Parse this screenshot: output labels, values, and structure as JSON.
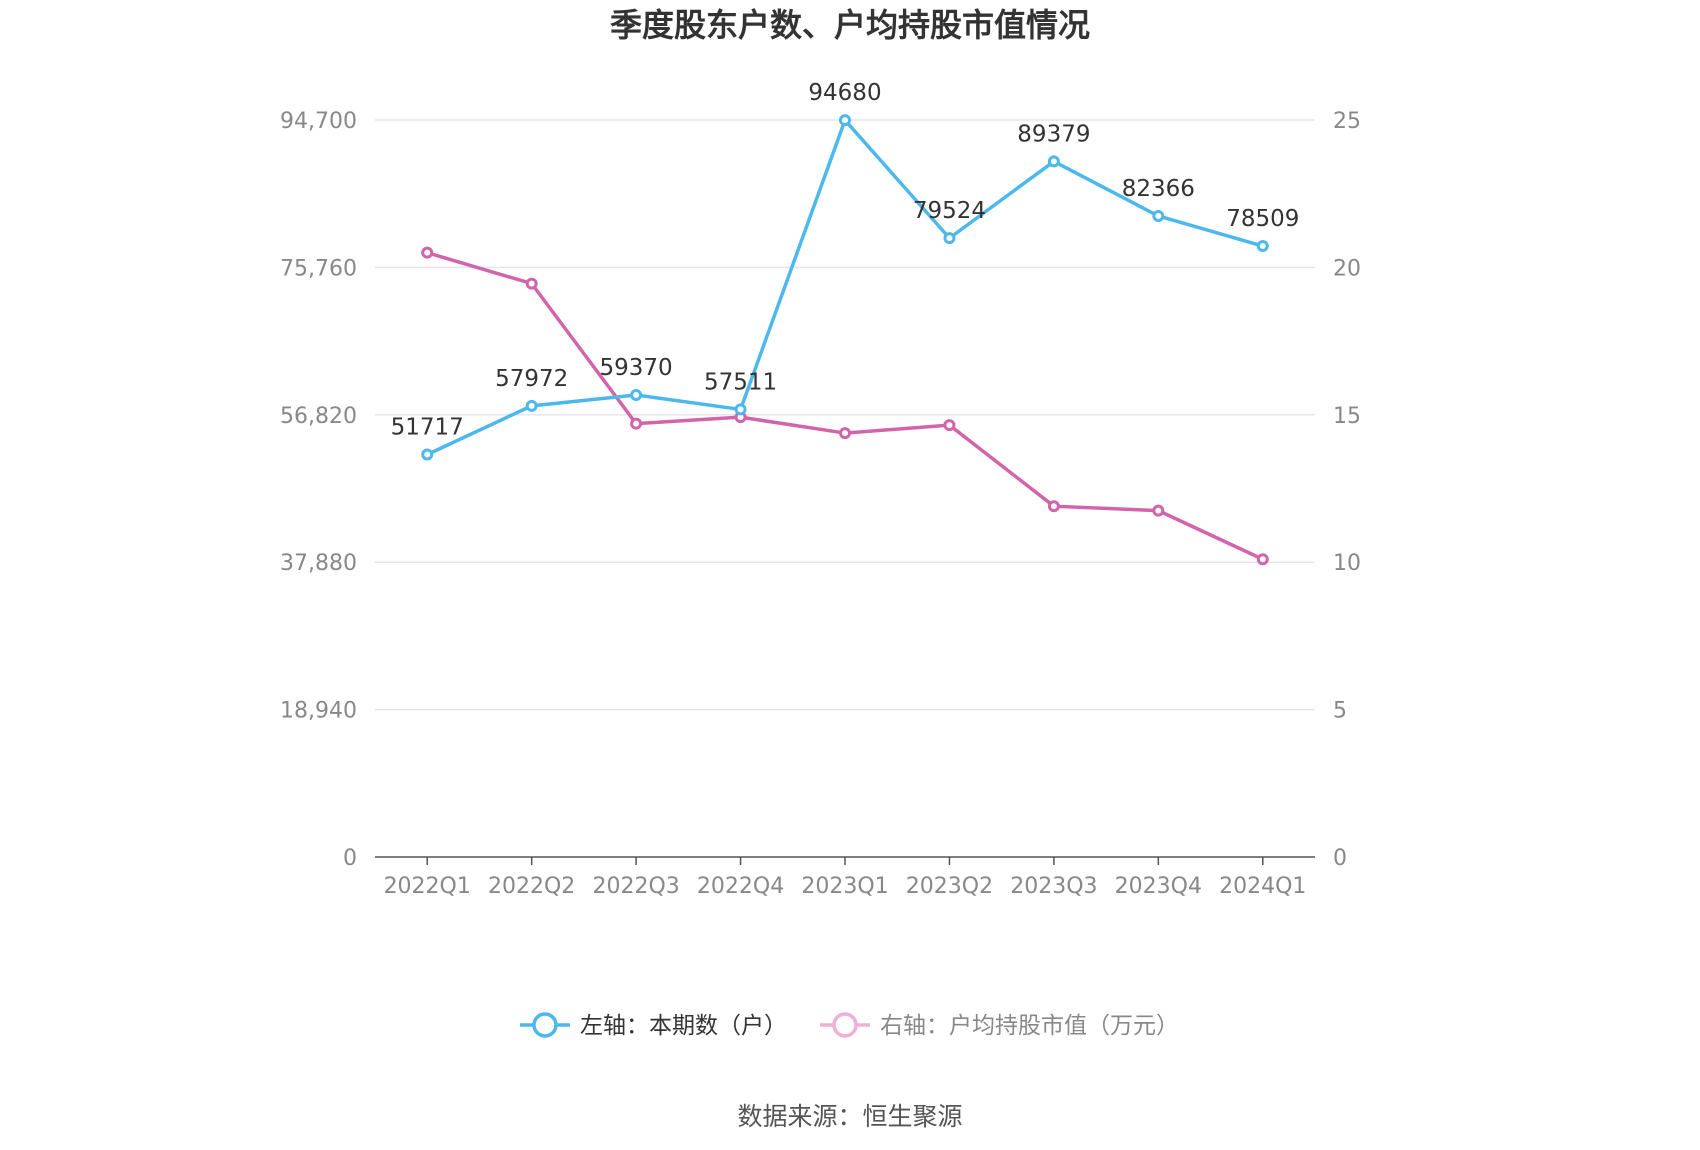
{
  "chart_data": {
    "type": "line",
    "title": "季度股东户数、户均持股市值情况",
    "categories": [
      "2022Q1",
      "2022Q2",
      "2022Q3",
      "2022Q4",
      "2023Q1",
      "2023Q2",
      "2023Q3",
      "2023Q4",
      "2024Q1"
    ],
    "left_axis": {
      "ylim": [
        0,
        94700
      ],
      "ticks": [
        "0",
        "18,940",
        "37,880",
        "56,820",
        "75,760",
        "94,700"
      ]
    },
    "right_axis": {
      "ylim": [
        0,
        25
      ],
      "ticks": [
        "0",
        "5",
        "10",
        "15",
        "20",
        "25"
      ]
    },
    "series": [
      {
        "name": "左轴：本期数（户）",
        "axis": "left",
        "color": "#4db8ec",
        "values": [
          51717,
          57972,
          59370,
          57511,
          94680,
          79524,
          89379,
          82366,
          78509
        ],
        "labels": [
          "51717",
          "57972",
          "59370",
          "57511",
          "94680",
          "79524",
          "89379",
          "82366",
          "78509"
        ]
      },
      {
        "name": "右轴：户均持股市值（万元）",
        "axis": "right",
        "color": "#d264ab",
        "values": [
          20.5,
          19.45,
          14.7,
          14.92,
          14.38,
          14.65,
          11.9,
          11.75,
          10.1
        ]
      }
    ],
    "legend_position": "bottom",
    "grid": true
  },
  "source": "数据来源：恒生聚源"
}
